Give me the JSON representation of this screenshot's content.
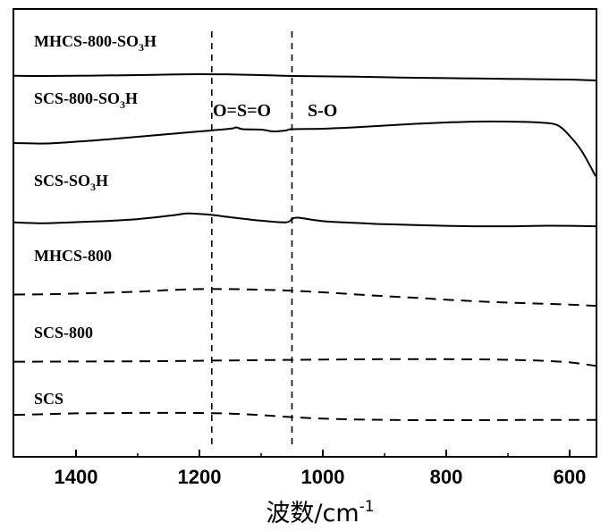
{
  "chart_data": {
    "type": "line",
    "xlabel": "波数/cm",
    "xlabel_sup": "-1",
    "xlim": [
      1500,
      550
    ],
    "x_reversed": true,
    "xticks": [
      1400,
      1200,
      1000,
      800,
      600
    ],
    "y_axis_shown": false,
    "grid": false,
    "legend": "none",
    "annotations": [
      {
        "text": "O=S=O",
        "x": 1180
      },
      {
        "text": "S-O",
        "x": 1050
      }
    ],
    "reference_lines": [
      1180,
      1050
    ],
    "series": [
      {
        "name": "MHCS-800-SO3H",
        "label_main": "MHCS-800-SO",
        "label_sub": "3",
        "label_tail": "H",
        "style": "solid",
        "x": [
          1500,
          1450,
          1400,
          1350,
          1300,
          1250,
          1200,
          1150,
          1100,
          1050,
          1000,
          950,
          900,
          850,
          800,
          750,
          700,
          650,
          600,
          550
        ],
        "y": [
          0.44,
          0.45,
          0.44,
          0.42,
          0.4,
          0.37,
          0.35,
          0.36,
          0.4,
          0.45,
          0.47,
          0.49,
          0.52,
          0.55,
          0.57,
          0.59,
          0.61,
          0.63,
          0.65,
          0.7
        ]
      },
      {
        "name": "SCS-800-SO3H",
        "label_main": "SCS-800-SO",
        "label_sub": "3",
        "label_tail": "H",
        "style": "solid",
        "x": [
          1500,
          1450,
          1400,
          1350,
          1300,
          1250,
          1200,
          1150,
          1140,
          1130,
          1100,
          1080,
          1060,
          1050,
          1000,
          950,
          900,
          850,
          800,
          750,
          700,
          650,
          620,
          600,
          580,
          550
        ],
        "y": [
          0.66,
          0.67,
          0.63,
          0.58,
          0.52,
          0.46,
          0.4,
          0.34,
          0.31,
          0.35,
          0.36,
          0.4,
          0.38,
          0.35,
          0.34,
          0.31,
          0.27,
          0.23,
          0.2,
          0.18,
          0.18,
          0.2,
          0.26,
          0.5,
          0.85,
          1.4
        ]
      },
      {
        "name": "SCS-SO3H",
        "label_main": "SCS-SO",
        "label_sub": "3",
        "label_tail": "H",
        "style": "solid",
        "x": [
          1500,
          1450,
          1400,
          1350,
          1300,
          1250,
          1220,
          1200,
          1180,
          1150,
          1100,
          1060,
          1050,
          1040,
          1000,
          950,
          900,
          850,
          800,
          750,
          700,
          650,
          600,
          550
        ],
        "y": [
          0.72,
          0.76,
          0.71,
          0.66,
          0.58,
          0.44,
          0.34,
          0.36,
          0.4,
          0.5,
          0.65,
          0.72,
          0.58,
          0.52,
          0.67,
          0.74,
          0.8,
          0.84,
          0.87,
          0.89,
          0.89,
          0.87,
          0.87,
          0.89
        ]
      },
      {
        "name": "MHCS-800",
        "label_main": "MHCS-800",
        "label_sub": "",
        "label_tail": "",
        "style": "dashed",
        "x": [
          1500,
          1450,
          1400,
          1350,
          1300,
          1250,
          1200,
          1150,
          1100,
          1050,
          1000,
          950,
          900,
          850,
          800,
          750,
          700,
          650,
          600,
          550
        ],
        "y": [
          0.64,
          0.62,
          0.58,
          0.52,
          0.46,
          0.36,
          0.3,
          0.3,
          0.34,
          0.4,
          0.5,
          0.62,
          0.74,
          0.84,
          0.96,
          1.06,
          1.14,
          1.2,
          1.26,
          1.34
        ]
      },
      {
        "name": "SCS-800",
        "label_main": "SCS-800",
        "label_sub": "",
        "label_tail": "",
        "style": "dashed",
        "x": [
          1500,
          1450,
          1400,
          1350,
          1300,
          1250,
          1200,
          1150,
          1100,
          1050,
          1000,
          950,
          900,
          850,
          800,
          750,
          700,
          650,
          600,
          550
        ],
        "y": [
          0.72,
          0.71,
          0.7,
          0.69,
          0.68,
          0.66,
          0.63,
          0.6,
          0.57,
          0.55,
          0.52,
          0.5,
          0.48,
          0.48,
          0.48,
          0.5,
          0.54,
          0.62,
          0.78,
          1.1
        ]
      },
      {
        "name": "SCS",
        "label_main": "SCS",
        "label_sub": "",
        "label_tail": "",
        "style": "dashed",
        "x": [
          1500,
          1450,
          1400,
          1350,
          1300,
          1250,
          1200,
          1150,
          1100,
          1050,
          1000,
          950,
          900,
          850,
          800,
          750,
          700,
          650,
          600,
          550
        ],
        "y": [
          0.58,
          0.52,
          0.46,
          0.44,
          0.42,
          0.42,
          0.43,
          0.48,
          0.6,
          0.76,
          0.88,
          0.94,
          0.98,
          1.0,
          1.0,
          1.0,
          0.99,
          0.98,
          0.98,
          0.98
        ]
      }
    ]
  }
}
